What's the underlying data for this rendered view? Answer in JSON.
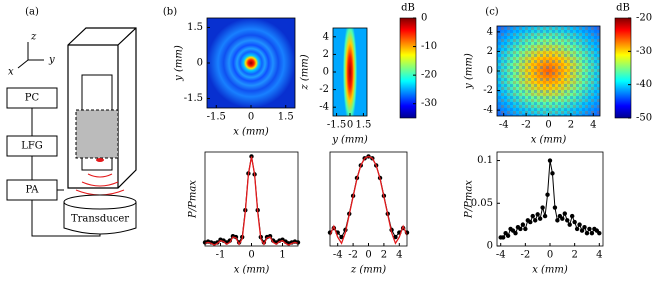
{
  "diagram": {
    "label": "(a)",
    "axis_z": "z",
    "axis_x": "x",
    "axis_y": "y",
    "boxes": [
      "PC",
      "LFG",
      "PA"
    ],
    "transducer": "Transducer"
  },
  "panel_labels": [
    "(b)",
    "(c)"
  ],
  "chart_data": [
    {
      "type": "heatmap",
      "xlabel": "x (mm)",
      "ylabel": "y (mm)",
      "xlim": [
        -1.9,
        1.9
      ],
      "ylim": [
        -1.9,
        1.9
      ],
      "xticks": [
        -1.5,
        0,
        1.5
      ],
      "yticks": [
        -1.5,
        0,
        1.5
      ]
    },
    {
      "type": "heatmap",
      "xlabel": "y (mm)",
      "ylabel": "z (mm)",
      "xlim": [
        -1.9,
        1.9
      ],
      "ylim": [
        -5,
        5
      ],
      "xticks": [
        -1.5,
        0,
        1.5
      ],
      "yticks": [
        -4,
        -2,
        0,
        2,
        4
      ],
      "colorbar": {
        "label": "dB",
        "lim": [
          -35,
          0
        ],
        "ticks": [
          0,
          -10,
          -20,
          -30
        ]
      }
    },
    {
      "type": "line",
      "xlabel": "x (mm)",
      "ylabel": "P/Pmax",
      "xlim": [
        -1.5,
        1.5
      ],
      "ylim": [
        0,
        1.05
      ],
      "xticks": [
        -1,
        0,
        1
      ],
      "x": [
        -1.5,
        -1.4,
        -1.3,
        -1.2,
        -1.1,
        -1.0,
        -0.9,
        -0.8,
        -0.7,
        -0.6,
        -0.5,
        -0.4,
        -0.3,
        -0.2,
        -0.1,
        0,
        0.1,
        0.2,
        0.3,
        0.4,
        0.5,
        0.6,
        0.7,
        0.8,
        0.9,
        1.0,
        1.1,
        1.2,
        1.3,
        1.4,
        1.5
      ],
      "series": [
        {
          "color": "#000000",
          "style": "line+markers",
          "values": [
            0.04,
            0.05,
            0.04,
            0.03,
            0.04,
            0.07,
            0.06,
            0.04,
            0.06,
            0.11,
            0.1,
            0.04,
            0.1,
            0.4,
            0.81,
            1,
            0.8,
            0.4,
            0.1,
            0.04,
            0.1,
            0.11,
            0.06,
            0.04,
            0.06,
            0.07,
            0.05,
            0.03,
            0.04,
            0.05,
            0.04
          ]
        },
        {
          "color": "#e31a1c",
          "style": "line",
          "values": [
            0.03,
            0.04,
            0.03,
            0.01,
            0.03,
            0.06,
            0.05,
            0.02,
            0.04,
            0.1,
            0.09,
            0.02,
            0.08,
            0.38,
            0.8,
            1,
            0.8,
            0.38,
            0.08,
            0.02,
            0.09,
            0.1,
            0.04,
            0.02,
            0.05,
            0.06,
            0.03,
            0.01,
            0.03,
            0.04,
            0.03
          ]
        }
      ]
    },
    {
      "type": "line",
      "xlabel": "z (mm)",
      "xlim": [
        -5,
        5
      ],
      "ylim": [
        0,
        1.05
      ],
      "xticks": [
        -4,
        -2,
        0,
        2,
        4
      ],
      "x": [
        -5,
        -4.5,
        -4,
        -3.5,
        -3,
        -2.5,
        -2,
        -1.5,
        -1,
        -0.5,
        0,
        0.5,
        1,
        1.5,
        2,
        2.5,
        3,
        3.5,
        4,
        4.5,
        5
      ],
      "series": [
        {
          "color": "#000000",
          "style": "line+markers",
          "values": [
            0.15,
            0.2,
            0.15,
            0.1,
            0.18,
            0.36,
            0.56,
            0.76,
            0.9,
            0.98,
            1,
            0.98,
            0.9,
            0.76,
            0.56,
            0.36,
            0.18,
            0.1,
            0.15,
            0.2,
            0.15
          ]
        },
        {
          "color": "#e31a1c",
          "style": "line",
          "values": [
            0.12,
            0.22,
            0.1,
            0.03,
            0.15,
            0.35,
            0.55,
            0.75,
            0.9,
            0.98,
            1,
            0.98,
            0.9,
            0.75,
            0.55,
            0.35,
            0.15,
            0.03,
            0.1,
            0.22,
            0.12
          ]
        }
      ]
    },
    {
      "type": "heatmap",
      "xlabel": "x (mm)",
      "ylabel": "y (mm)",
      "xlim": [
        -4.6,
        4.6
      ],
      "ylim": [
        -4.6,
        4.6
      ],
      "xticks": [
        -4,
        -2,
        0,
        2,
        4
      ],
      "yticks": [
        -4,
        -2,
        0,
        2,
        4
      ],
      "colorbar": {
        "label": "dB",
        "lim": [
          -50,
          -20
        ],
        "ticks": [
          -20,
          -30,
          -40,
          -50
        ]
      }
    },
    {
      "type": "line",
      "xlabel": "x (mm)",
      "ylabel": "P/Pmax",
      "xlim": [
        -4.3,
        4.3
      ],
      "ylim": [
        0,
        0.11
      ],
      "xticks": [
        -4,
        -2,
        0,
        2,
        4
      ],
      "yticks": [
        0,
        0.05,
        0.1
      ],
      "x": [
        -4,
        -3.8,
        -3.6,
        -3.4,
        -3.2,
        -3,
        -2.8,
        -2.6,
        -2.4,
        -2.2,
        -2,
        -1.8,
        -1.6,
        -1.4,
        -1.2,
        -1,
        -0.8,
        -0.6,
        -0.4,
        -0.2,
        0,
        0.2,
        0.4,
        0.6,
        0.8,
        1,
        1.2,
        1.4,
        1.6,
        1.8,
        2,
        2.2,
        2.4,
        2.6,
        2.8,
        3,
        3.2,
        3.4,
        3.6,
        3.8,
        4
      ],
      "series": [
        {
          "color": "#000000",
          "style": "line+markers",
          "values": [
            0.01,
            0.01,
            0.015,
            0.012,
            0.02,
            0.018,
            0.015,
            0.022,
            0.02,
            0.025,
            0.02,
            0.03,
            0.028,
            0.035,
            0.03,
            0.037,
            0.032,
            0.045,
            0.035,
            0.06,
            0.1,
            0.085,
            0.045,
            0.03,
            0.035,
            0.032,
            0.038,
            0.03,
            0.025,
            0.035,
            0.028,
            0.02,
            0.025,
            0.018,
            0.022,
            0.015,
            0.02,
            0.015,
            0.02,
            0.018,
            0.015
          ]
        }
      ]
    }
  ]
}
